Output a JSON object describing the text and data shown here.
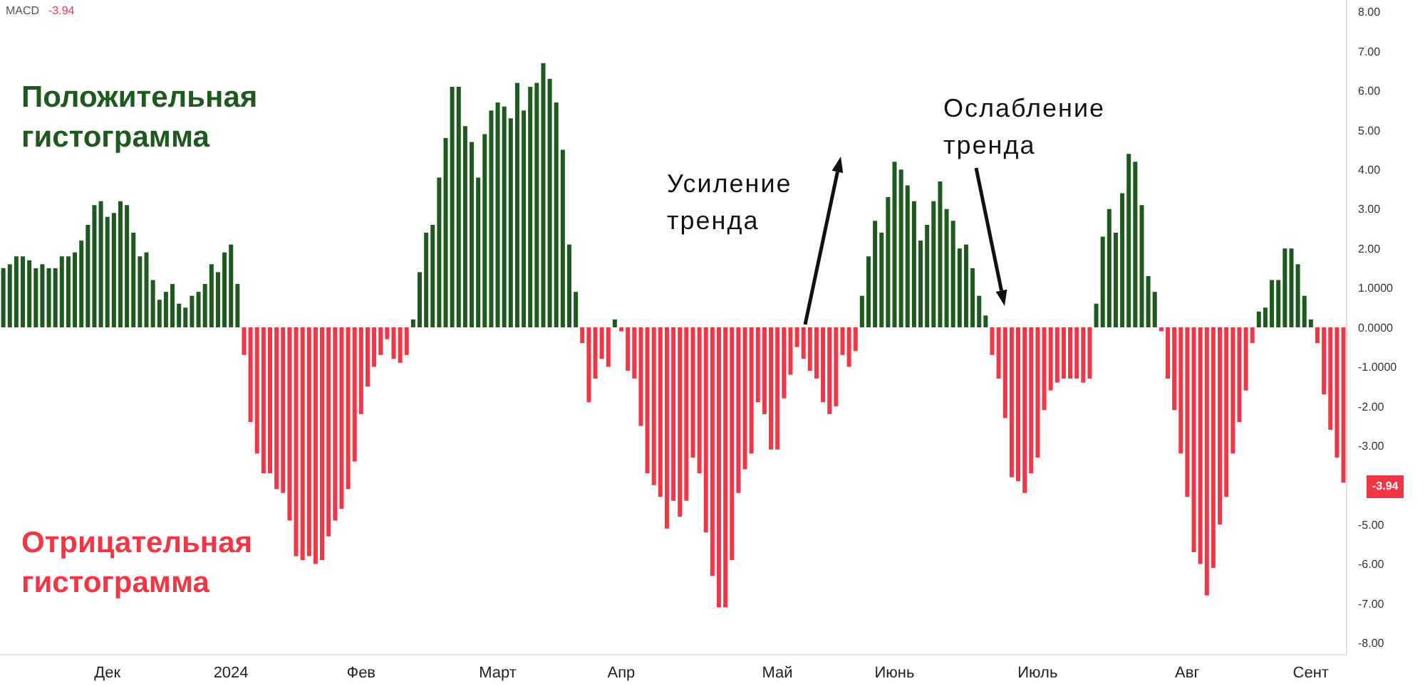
{
  "chart_data": {
    "type": "bar",
    "stacked": true,
    "categories": [
      null,
      null,
      null,
      null,
      null,
      null,
      null,
      null,
      null,
      null,
      null,
      null,
      null,
      null,
      null,
      null,
      "Дек",
      null,
      null,
      null,
      null,
      null,
      null,
      null,
      null,
      null,
      null,
      null,
      null,
      null,
      null,
      null,
      null,
      null,
      null,
      "2024",
      null,
      null,
      null,
      null,
      null,
      null,
      null,
      null,
      null,
      null,
      null,
      null,
      null,
      null,
      null,
      null,
      null,
      null,
      null,
      "Фев",
      null,
      null,
      null,
      null,
      null,
      null,
      null,
      null,
      null,
      null,
      null,
      null,
      null,
      null,
      null,
      null,
      null,
      null,
      null,
      null,
      "Март",
      null,
      null,
      null,
      null,
      null,
      null,
      null,
      null,
      null,
      null,
      null,
      null,
      null,
      null,
      null,
      null,
      null,
      null,
      "Апр",
      null,
      null,
      null,
      null,
      null,
      null,
      null,
      null,
      null,
      null,
      null,
      null,
      null,
      null,
      null,
      null,
      null,
      null,
      null,
      null,
      null,
      null,
      null,
      "Май",
      null,
      null,
      null,
      null,
      null,
      null,
      null,
      null,
      null,
      null,
      null,
      null,
      null,
      null,
      null,
      null,
      null,
      "Июнь",
      null,
      null,
      null,
      null,
      null,
      null,
      null,
      null,
      null,
      null,
      null,
      null,
      null,
      null,
      null,
      null,
      null,
      null,
      null,
      null,
      null,
      "Июль",
      null,
      null,
      null,
      null,
      null,
      null,
      null,
      null,
      null,
      null,
      null,
      null,
      null,
      null,
      null,
      null,
      null,
      null,
      null,
      null,
      null,
      null,
      "Авг",
      null,
      null,
      null,
      null,
      null,
      null,
      null,
      null,
      null,
      null,
      null,
      null,
      null,
      null,
      null,
      null,
      null,
      null,
      "Сент",
      null,
      null,
      null,
      null,
      null
    ],
    "series": [
      {
        "name": "Положительная гистограмма",
        "color": "#1e5a1e",
        "values": [
          1.5,
          1.6,
          1.8,
          1.8,
          1.7,
          1.5,
          1.6,
          1.5,
          1.5,
          1.8,
          1.8,
          1.9,
          2.2,
          2.6,
          3.1,
          3.2,
          2.8,
          2.9,
          3.2,
          3.1,
          2.4,
          1.8,
          1.9,
          1.2,
          0.7,
          0.9,
          1.1,
          0.6,
          0.5,
          0.8,
          0.9,
          1.1,
          1.6,
          1.4,
          1.9,
          2.1,
          1.1,
          null,
          null,
          null,
          null,
          null,
          null,
          null,
          null,
          null,
          null,
          null,
          null,
          null,
          null,
          null,
          null,
          null,
          null,
          null,
          null,
          null,
          null,
          null,
          null,
          null,
          null,
          0.2,
          1.4,
          2.4,
          2.6,
          3.8,
          4.8,
          6.1,
          6.1,
          5.1,
          4.7,
          3.8,
          4.9,
          5.5,
          5.7,
          5.6,
          5.3,
          6.2,
          5.5,
          6.1,
          6.2,
          6.7,
          6.3,
          5.7,
          4.5,
          2.1,
          0.9,
          null,
          null,
          null,
          null,
          null,
          0.2,
          null,
          null,
          null,
          null,
          null,
          null,
          null,
          null,
          null,
          null,
          null,
          null,
          null,
          null,
          null,
          null,
          null,
          null,
          null,
          null,
          null,
          null,
          null,
          null,
          null,
          null,
          null,
          null,
          null,
          null,
          null,
          null,
          null,
          null,
          null,
          null,
          null,
          0.8,
          1.8,
          2.7,
          2.4,
          3.3,
          4.2,
          4.0,
          3.6,
          3.2,
          2.2,
          2.6,
          3.2,
          3.7,
          3.0,
          2.7,
          2.0,
          2.1,
          1.5,
          0.8,
          0.3,
          null,
          null,
          null,
          null,
          null,
          null,
          null,
          null,
          null,
          null,
          null,
          null,
          null,
          null,
          null,
          null,
          0.6,
          2.3,
          3.0,
          2.4,
          3.4,
          4.4,
          4.2,
          3.1,
          1.3,
          0.9,
          null,
          null,
          null,
          null,
          null,
          null,
          null,
          null,
          null,
          null,
          null,
          null,
          null,
          null,
          null,
          0.4,
          0.5,
          1.2,
          1.2,
          2.0,
          2.0,
          1.6,
          0.8,
          0.2,
          null,
          null,
          null,
          null,
          null
        ]
      },
      {
        "name": "Отрицательная гистограмма",
        "color": "#f23645",
        "values": [
          null,
          null,
          null,
          null,
          null,
          null,
          null,
          null,
          null,
          null,
          null,
          null,
          null,
          null,
          null,
          null,
          null,
          null,
          null,
          null,
          null,
          null,
          null,
          null,
          null,
          null,
          null,
          null,
          null,
          null,
          null,
          null,
          null,
          null,
          null,
          null,
          null,
          -0.7,
          -2.4,
          -3.2,
          -3.7,
          -3.7,
          -4.1,
          -4.2,
          -4.9,
          -5.8,
          -5.9,
          -5.8,
          -6.0,
          -5.9,
          -5.3,
          -4.9,
          -4.6,
          -4.1,
          -3.4,
          -2.2,
          -1.5,
          -1.0,
          -0.7,
          -0.3,
          -0.8,
          -0.9,
          -0.7,
          null,
          null,
          null,
          null,
          null,
          null,
          null,
          null,
          null,
          null,
          null,
          null,
          null,
          null,
          null,
          null,
          null,
          null,
          null,
          null,
          null,
          null,
          null,
          null,
          null,
          null,
          -0.4,
          -1.9,
          -1.3,
          -0.8,
          -1.0,
          null,
          -0.1,
          -1.1,
          -1.3,
          -2.5,
          -3.7,
          -4.0,
          -4.3,
          -5.1,
          -4.4,
          -4.8,
          -4.4,
          -3.3,
          -3.7,
          -5.2,
          -6.3,
          -7.1,
          -7.1,
          -5.9,
          -4.2,
          -3.6,
          -3.2,
          -1.9,
          -2.2,
          -3.1,
          -3.1,
          -1.8,
          -1.2,
          -0.5,
          -0.8,
          -1.1,
          -1.3,
          -1.9,
          -2.2,
          -2.0,
          -0.7,
          -1.0,
          -0.6,
          null,
          null,
          null,
          null,
          null,
          null,
          null,
          null,
          null,
          null,
          null,
          null,
          null,
          null,
          null,
          null,
          null,
          null,
          null,
          null,
          -0.7,
          -1.3,
          -2.3,
          -3.8,
          -3.9,
          -4.2,
          -3.7,
          -3.3,
          -2.1,
          -1.6,
          -1.4,
          -1.3,
          -1.3,
          -1.3,
          -1.4,
          -1.3,
          null,
          null,
          null,
          null,
          null,
          null,
          null,
          null,
          null,
          null,
          -0.1,
          -1.3,
          -2.1,
          -3.2,
          -4.3,
          -5.7,
          -6.0,
          -6.8,
          -6.1,
          -5.0,
          -4.3,
          -3.2,
          -2.4,
          -1.6,
          -0.4,
          null,
          null,
          null,
          null,
          null,
          null,
          null,
          null,
          null,
          -0.4,
          -1.7,
          -2.6,
          -3.3,
          -3.94
        ]
      }
    ],
    "ylim": [
      -8.3,
      8.3
    ],
    "yticks": [
      {
        "value": 8,
        "label": "8.00"
      },
      {
        "value": 7,
        "label": "7.00"
      },
      {
        "value": 6,
        "label": "6.00"
      },
      {
        "value": 5,
        "label": "5.00"
      },
      {
        "value": 4,
        "label": "4.00"
      },
      {
        "value": 3,
        "label": "3.00"
      },
      {
        "value": 2,
        "label": "2.00"
      },
      {
        "value": 1,
        "label": "1.0000"
      },
      {
        "value": 0,
        "label": "0.0000"
      },
      {
        "value": -1,
        "label": "-1.0000"
      },
      {
        "value": -2,
        "label": "-2.00"
      },
      {
        "value": -3,
        "label": "-3.00"
      },
      {
        "value": -5,
        "label": "-5.00"
      },
      {
        "value": -6,
        "label": "-6.00"
      },
      {
        "value": -7,
        "label": "-7.00"
      },
      {
        "value": -8,
        "label": "-8.00"
      }
    ],
    "annotations": [
      "Усиление тренда",
      "Ослабление тренда",
      "MACD",
      "-3.94",
      "-3.94"
    ]
  }
}
